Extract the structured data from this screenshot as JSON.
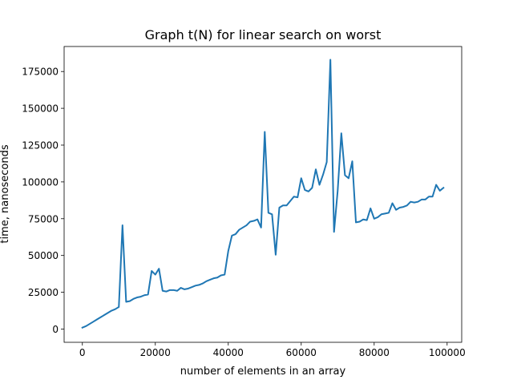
{
  "chart_data": {
    "type": "line",
    "title": "Graph t(N) for linear search on worst",
    "xlabel": "number of elements in an array",
    "ylabel": "time, nanoseconds",
    "xlim": [
      -5000,
      104000
    ],
    "ylim": [
      -9000,
      192000
    ],
    "xticks": [
      0,
      20000,
      40000,
      60000,
      80000,
      100000
    ],
    "xtick_labels": [
      "0",
      "20000",
      "40000",
      "60000",
      "80000",
      "100000"
    ],
    "yticks": [
      0,
      25000,
      50000,
      75000,
      100000,
      125000,
      150000,
      175000
    ],
    "ytick_labels": [
      "0",
      "25000",
      "50000",
      "75000",
      "100000",
      "125000",
      "150000",
      "175000"
    ],
    "grid": false,
    "series": [
      {
        "color": "#1f77b4",
        "x": [
          0,
          1000,
          2000,
          3000,
          4000,
          5000,
          6000,
          7000,
          8000,
          9000,
          10000,
          11000,
          12000,
          13000,
          14000,
          15000,
          16000,
          17000,
          18000,
          19000,
          20000,
          21000,
          22000,
          23000,
          24000,
          25000,
          26000,
          27000,
          28000,
          29000,
          30000,
          31000,
          32000,
          33000,
          34000,
          35000,
          36000,
          37000,
          38000,
          39000,
          40000,
          41000,
          42000,
          43000,
          44000,
          45000,
          46000,
          47000,
          48000,
          49000,
          50000,
          51000,
          52000,
          53000,
          54000,
          55000,
          56000,
          57000,
          58000,
          59000,
          60000,
          61000,
          62000,
          63000,
          64000,
          65000,
          66000,
          67000,
          68000,
          69000,
          70000,
          71000,
          72000,
          73000,
          74000,
          75000,
          76000,
          77000,
          78000,
          79000,
          80000,
          81000,
          82000,
          83000,
          84000,
          85000,
          86000,
          87000,
          88000,
          89000,
          90000,
          91000,
          92000,
          93000,
          94000,
          95000,
          96000,
          97000,
          98000,
          99000
        ],
        "y": [
          1000,
          2000,
          3500,
          5000,
          6500,
          8000,
          9500,
          11000,
          12500,
          13500,
          15000,
          70500,
          18500,
          19000,
          20500,
          21500,
          22000,
          23000,
          23500,
          39500,
          37000,
          41000,
          26000,
          25500,
          26500,
          26500,
          26000,
          28000,
          27000,
          27500,
          28500,
          29500,
          30000,
          31000,
          32500,
          33500,
          34500,
          35000,
          36500,
          37000,
          53000,
          63500,
          64500,
          67500,
          69000,
          70500,
          73000,
          73500,
          74500,
          69000,
          134000,
          79000,
          78000,
          50500,
          82500,
          84000,
          84000,
          87000,
          90000,
          89500,
          102500,
          94500,
          93500,
          96000,
          108500,
          98000,
          105000,
          113500,
          183000,
          66000,
          94000,
          133000,
          104500,
          102500,
          114000,
          72500,
          73000,
          74500,
          74000,
          82000,
          75000,
          76000,
          78000,
          78500,
          79000,
          85500,
          81000,
          82500,
          83000,
          84000,
          86500,
          86000,
          86500,
          88000,
          88000,
          90000,
          90000,
          98000,
          94000,
          96000
        ]
      }
    ]
  }
}
